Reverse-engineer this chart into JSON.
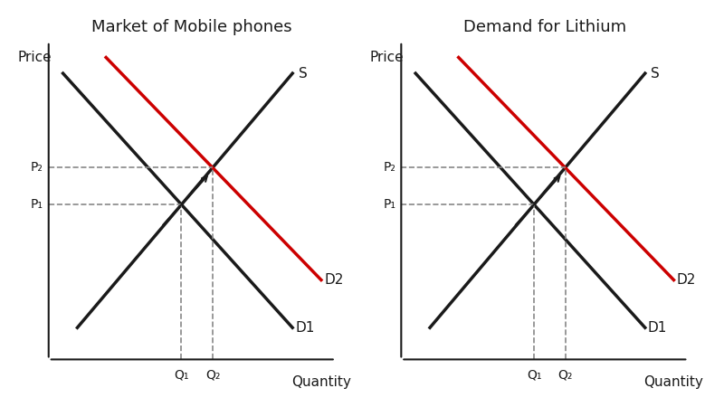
{
  "title_left": "Market of Mobile phones",
  "title_right": "Demand for Lithium",
  "price_label": "Price",
  "quantity_label": "Quantity",
  "background_color": "#ffffff",
  "line_color_black": "#1a1a1a",
  "line_color_red": "#cc0000",
  "dashed_color": "#888888",
  "text_color": "#1a1a1a",
  "title_fontsize": 13,
  "label_fontsize": 11,
  "tick_fontsize": 10,
  "supply_label": "S",
  "d1_label": "D1",
  "d2_label": "D2",
  "p1_label": "P₁",
  "p2_label": "P₂",
  "q1_label": "Q₁",
  "q2_label": "Q₂"
}
